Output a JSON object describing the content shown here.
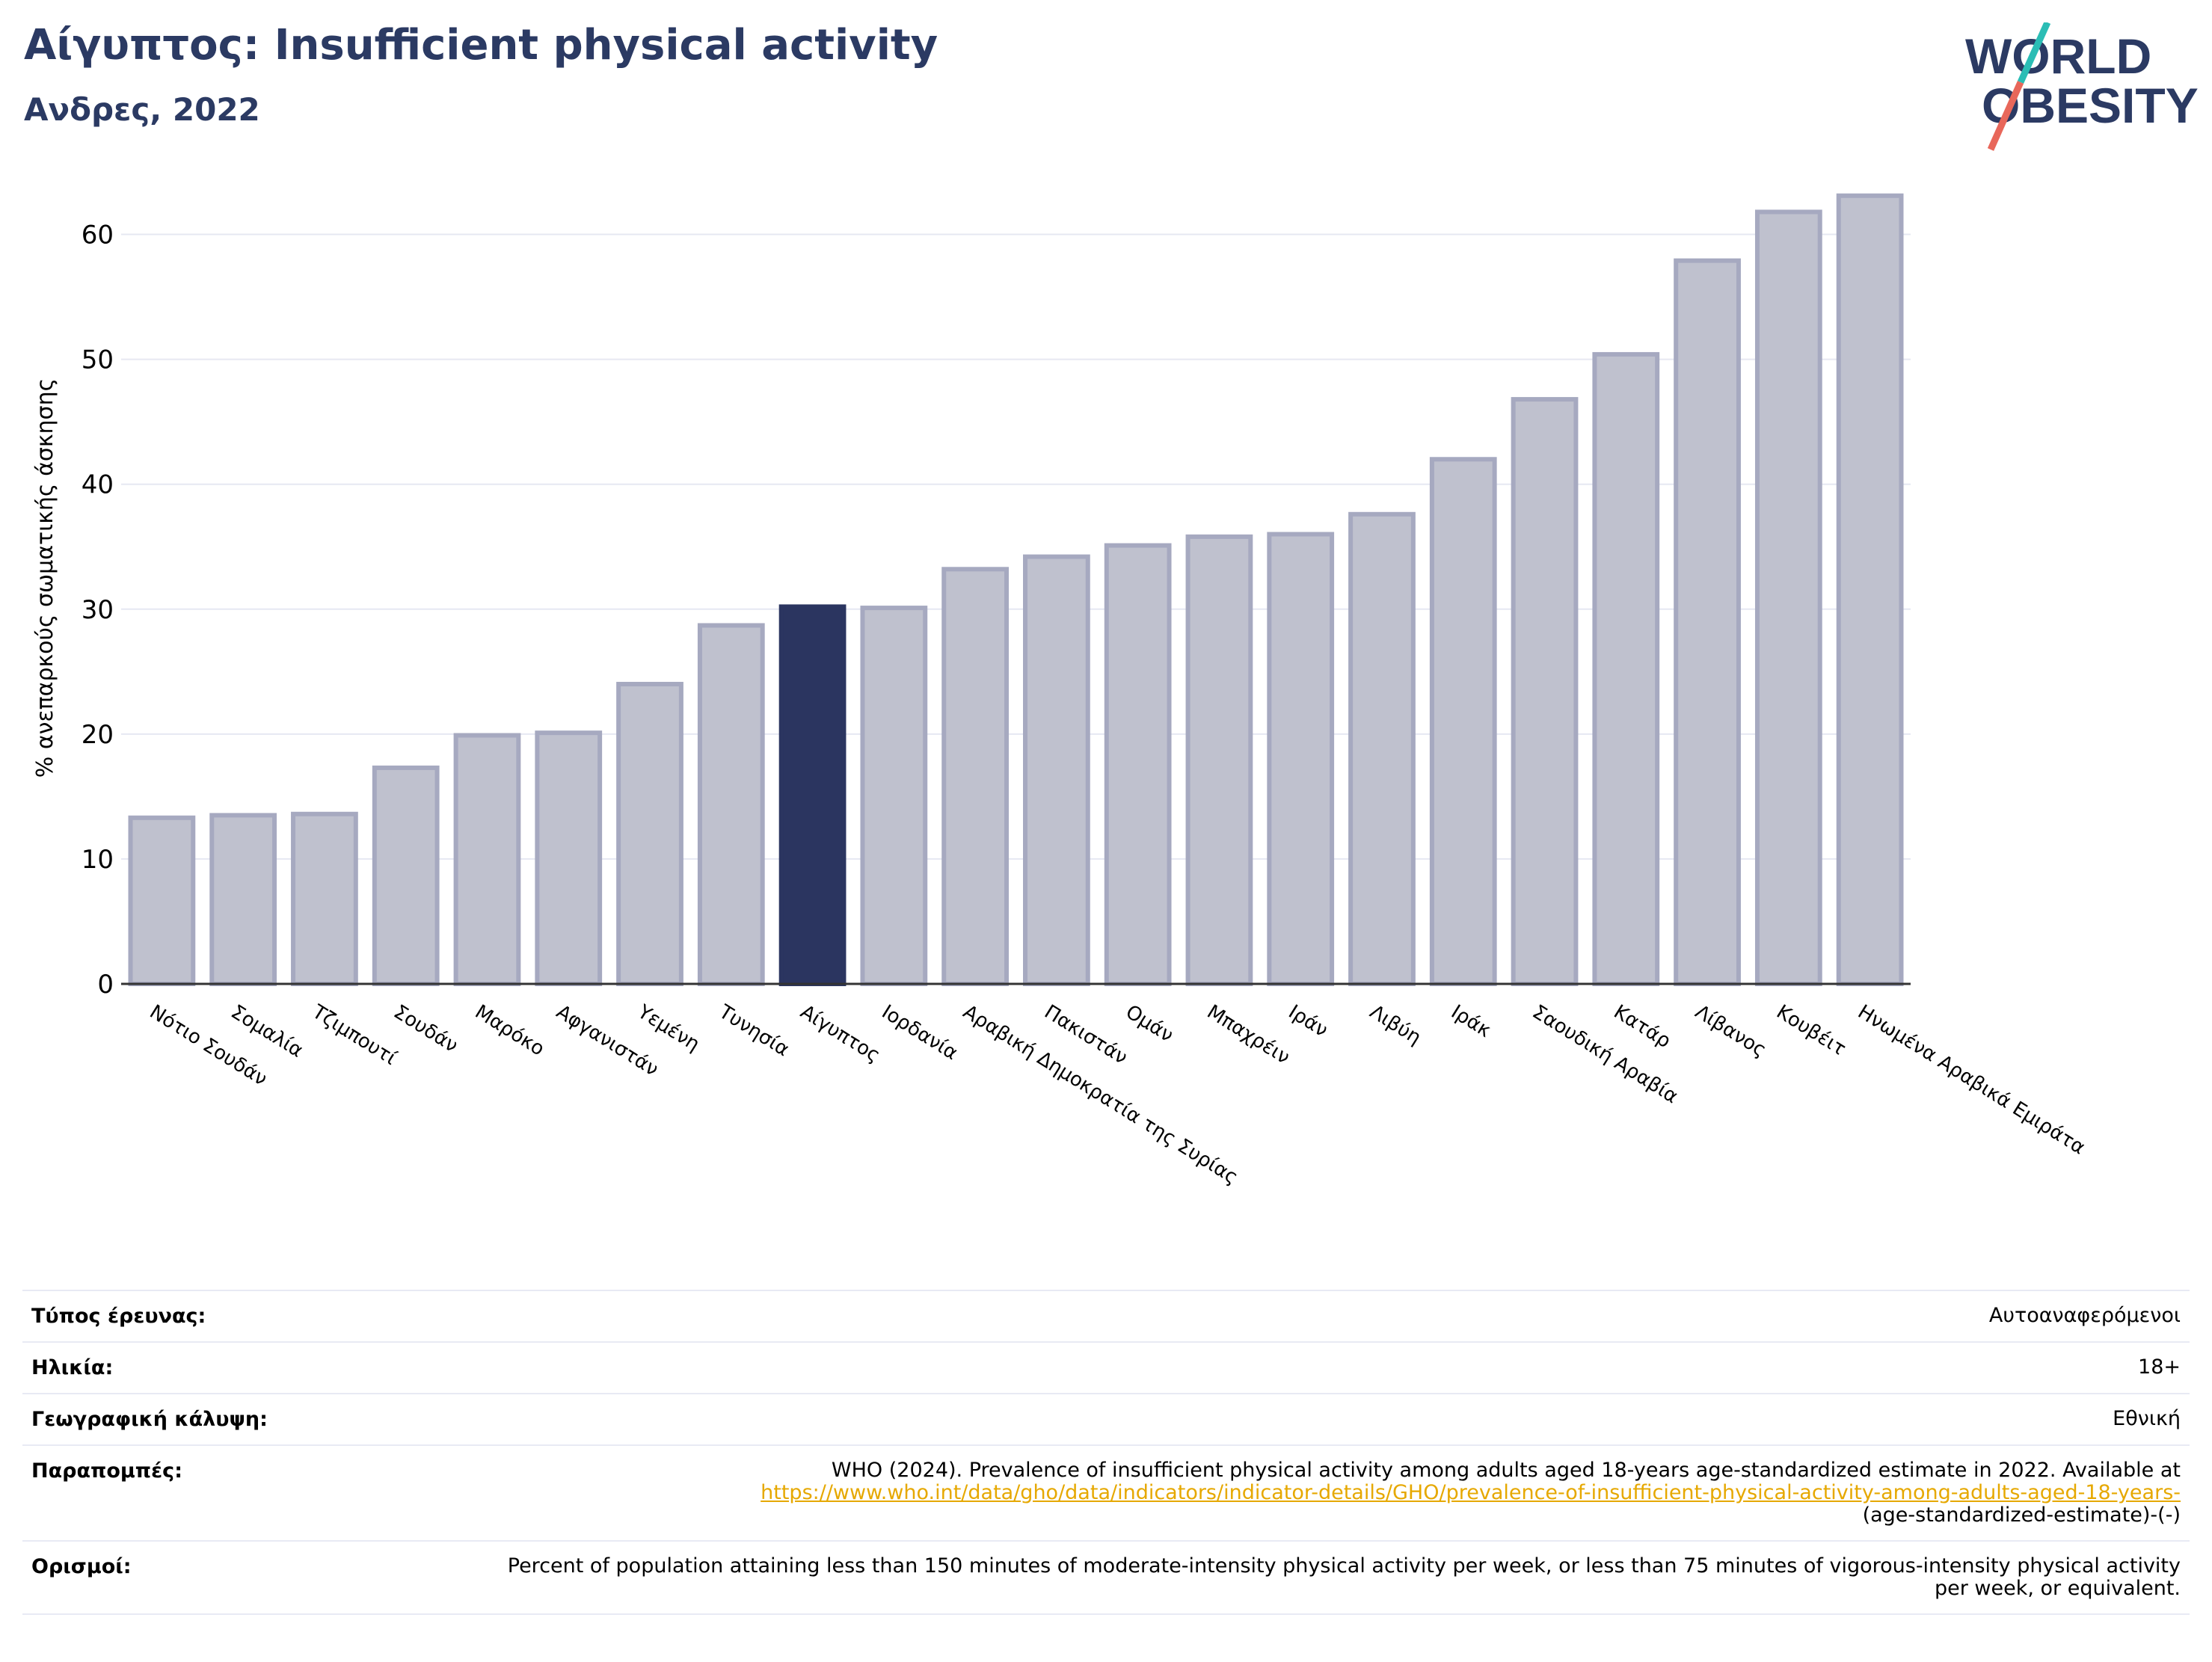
{
  "header": {
    "title": "Αίγυπτος: Insufficient physical activity",
    "subtitle": "Ανδρες, 2022"
  },
  "logo": {
    "line1": "WORLD",
    "line2": "OBESITY",
    "colors": {
      "text": "#2b3a63",
      "slash_top": "#2bbdb5",
      "slash_bottom": "#e8675a"
    }
  },
  "chart_data": {
    "type": "bar",
    "ylabel": "% ανεπαρκούς σωματικής άσκησης",
    "ylim": [
      0,
      65
    ],
    "yticks": [
      0,
      10,
      20,
      30,
      40,
      50,
      60
    ],
    "grid": true,
    "highlight": "Αίγυπτος",
    "colors": {
      "bar": "#bfc1ce",
      "bar_edge": "#a6a9c0",
      "highlight": "#2b3560"
    },
    "categories": [
      "Νότιο Σουδάν",
      "Σομαλία",
      "Τζιμπουτί",
      "Σουδάν",
      "Μαρόκο",
      "Αφγανιστάν",
      "Υεμένη",
      "Τυνησία",
      "Αίγυπτος",
      "Ιορδανία",
      "Αραβική Δημοκρατία της Συρίας",
      "Πακιστάν",
      "Ομάν",
      "Μπαχρέιν",
      "Ιράν",
      "Λιβύη",
      "Ιράκ",
      "Σαουδική Αραβία",
      "Κατάρ",
      "Λίβανος",
      "Κουβέιτ",
      "Ηνωμένα Αραβικά Εμιράτα"
    ],
    "values": [
      13.3,
      13.5,
      13.6,
      17.3,
      19.9,
      20.1,
      24.0,
      28.7,
      30.2,
      30.1,
      33.2,
      34.2,
      35.1,
      35.8,
      36.0,
      37.6,
      42.0,
      46.8,
      50.4,
      57.9,
      61.8,
      63.1
    ]
  },
  "meta": {
    "survey_type_label": "Τύπος έρευνας:",
    "survey_type_value": "Αυτοαναφερόμενοι",
    "age_label": "Ηλικία:",
    "age_value": "18+",
    "coverage_label": "Γεωγραφική κάλυψη:",
    "coverage_value": "Εθνική",
    "references_label": "Παραπομπές:",
    "references_text": "WHO (2024). Prevalence of insufficient physical activity among adults aged 18-years age-standardized estimate in 2022. Available at",
    "references_link": "https://www.who.int/data/gho/data/indicators/indicator-details/GHO/prevalence-of-insufficient-physical-activity-among-adults-aged-18-years-",
    "references_tail": "(age-standardized-estimate)-(-)",
    "definitions_label": "Ορισμοί:",
    "definitions_value": "Percent of population attaining less than 150 minutes of moderate-intensity physical activity per week, or less than 75 minutes of vigorous-intensity physical activity per week, or equivalent."
  }
}
